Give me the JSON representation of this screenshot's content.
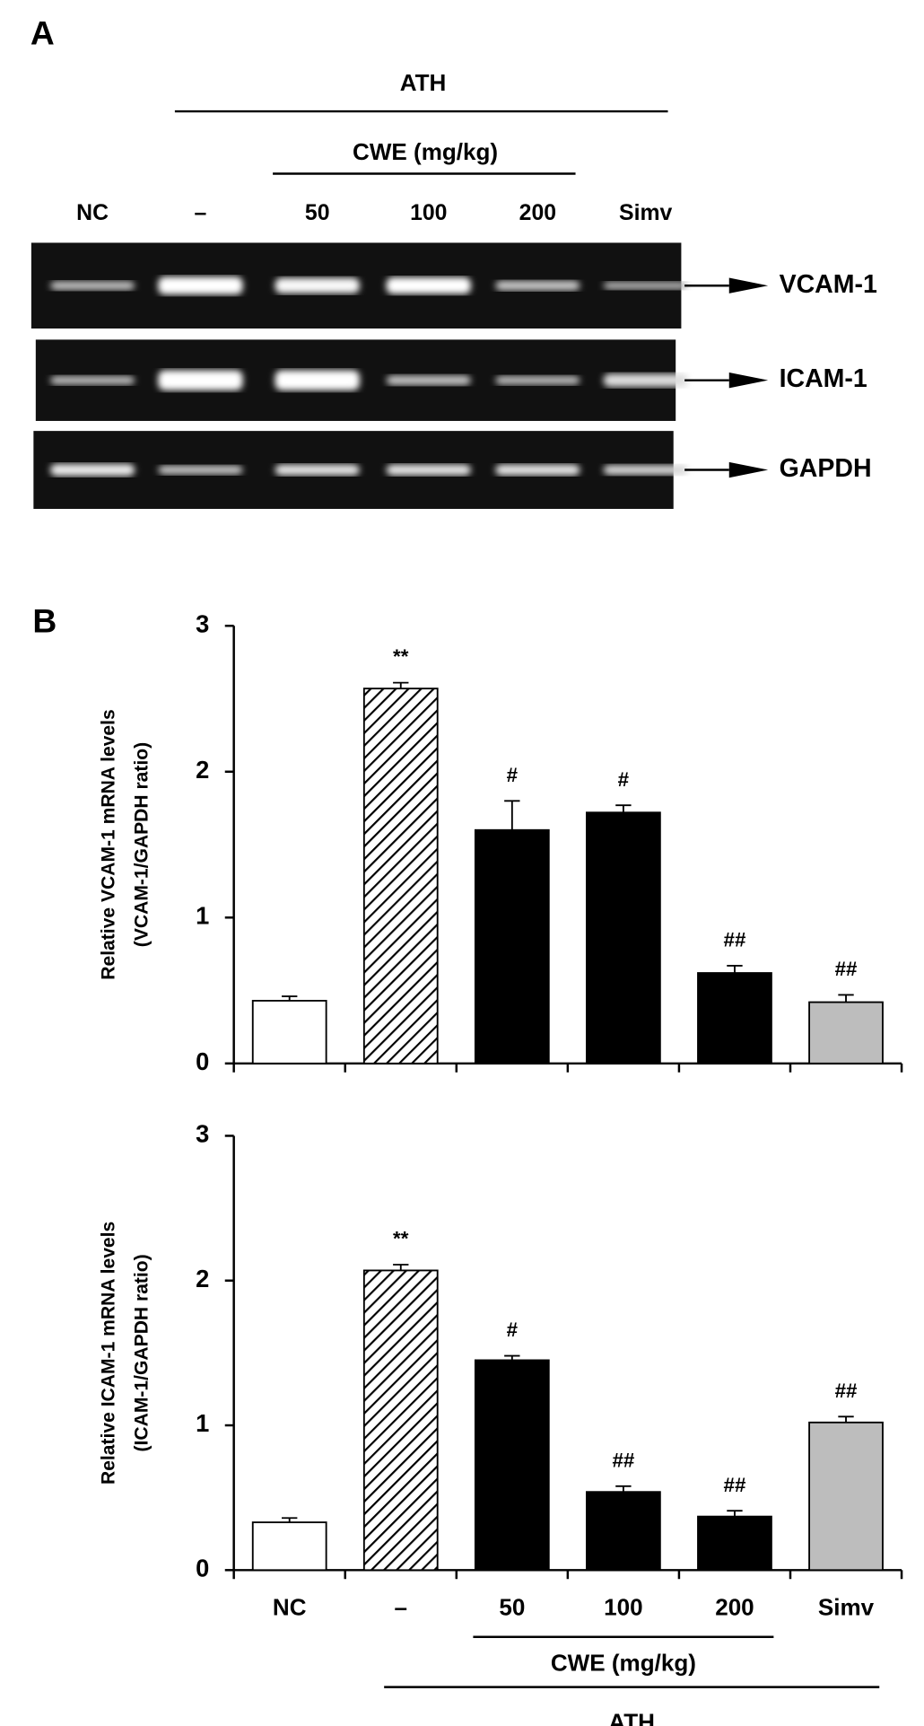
{
  "panel_a": {
    "label": "A",
    "group_top": "ATH",
    "group_sub": "CWE (mg/kg)",
    "lanes": [
      "NC",
      "–",
      "50",
      "100",
      "200",
      "Simv"
    ],
    "bands": [
      "VCAM-1",
      "ICAM-1",
      "GAPDH"
    ]
  },
  "panel_b_label": "B",
  "chart_data": [
    {
      "type": "bar",
      "y_label": [
        "Relative VCAM-1 mRNA levels",
        "(VCAM-1/GAPDH ratio)"
      ],
      "values": [
        0.43,
        2.57,
        1.6,
        1.72,
        0.62,
        0.42
      ],
      "errors": [
        0.03,
        0.04,
        0.2,
        0.05,
        0.05,
        0.05
      ],
      "annotations": [
        null,
        "**",
        "#",
        "#",
        "##",
        "##"
      ],
      "colors": [
        "#ffffff",
        "#ffffff",
        "#000000",
        "#000000",
        "#000000",
        "#bdbdbd"
      ],
      "hatched": [
        false,
        true,
        false,
        false,
        false,
        false
      ],
      "ylim": [
        0,
        3
      ],
      "yticks": [
        0,
        1,
        2,
        3
      ]
    },
    {
      "type": "bar",
      "y_label": [
        "Relative ICAM-1 mRNA levels",
        "(ICAM-1/GAPDH ratio)"
      ],
      "categories": [
        "NC",
        "–",
        "50",
        "100",
        "200",
        "Simv"
      ],
      "values": [
        0.33,
        2.07,
        1.45,
        0.54,
        0.37,
        1.02
      ],
      "errors": [
        0.03,
        0.04,
        0.03,
        0.04,
        0.04,
        0.04
      ],
      "annotations": [
        null,
        "**",
        "#",
        "##",
        "##",
        "##"
      ],
      "colors": [
        "#ffffff",
        "#ffffff",
        "#000000",
        "#000000",
        "#000000",
        "#bdbdbd"
      ],
      "hatched": [
        false,
        true,
        false,
        false,
        false,
        false
      ],
      "x_group_labels": [
        "CWE (mg/kg)",
        "ATH"
      ],
      "ylim": [
        0,
        3
      ],
      "yticks": [
        0,
        1,
        2,
        3
      ]
    }
  ]
}
